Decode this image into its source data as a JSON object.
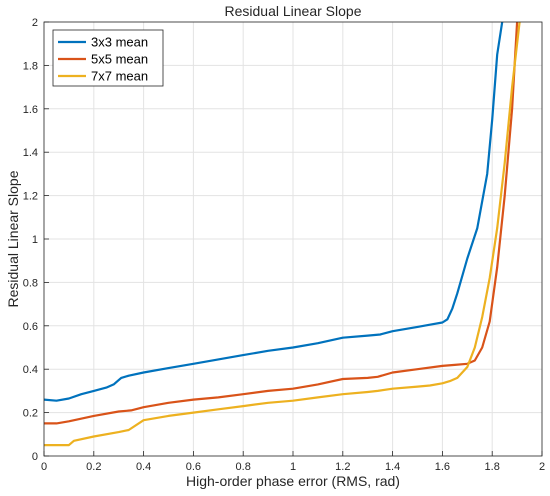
{
  "chart_data": {
    "type": "line",
    "title": "Residual Linear Slope",
    "xlabel": "High-order phase error (RMS, rad)",
    "ylabel": "Residual Linear Slope",
    "xlim": [
      0,
      2
    ],
    "ylim": [
      0,
      2
    ],
    "xticks": [
      "0",
      "0.2",
      "0.4",
      "0.6",
      "0.8",
      "1",
      "1.2",
      "1.4",
      "1.6",
      "1.8",
      "2"
    ],
    "yticks": [
      "0",
      "0.2",
      "0.4",
      "0.6",
      "0.8",
      "1",
      "1.2",
      "1.4",
      "1.6",
      "1.8",
      "2"
    ],
    "grid": true,
    "legend_position": "top-left",
    "series": [
      {
        "name": "3x3 mean",
        "color": "#0072BD",
        "x": [
          0,
          0.05,
          0.1,
          0.15,
          0.2,
          0.25,
          0.28,
          0.31,
          0.34,
          0.4,
          0.5,
          0.6,
          0.7,
          0.8,
          0.9,
          1.0,
          1.1,
          1.2,
          1.3,
          1.35,
          1.4,
          1.5,
          1.55,
          1.6,
          1.62,
          1.64,
          1.66,
          1.7,
          1.74,
          1.78,
          1.8,
          1.82,
          1.84
        ],
        "y": [
          0.26,
          0.255,
          0.265,
          0.285,
          0.3,
          0.315,
          0.33,
          0.36,
          0.37,
          0.385,
          0.405,
          0.425,
          0.445,
          0.465,
          0.485,
          0.5,
          0.52,
          0.545,
          0.555,
          0.56,
          0.575,
          0.595,
          0.605,
          0.615,
          0.63,
          0.68,
          0.75,
          0.91,
          1.05,
          1.3,
          1.55,
          1.85,
          2.0
        ]
      },
      {
        "name": "5x5 mean",
        "color": "#D95319",
        "x": [
          0,
          0.05,
          0.1,
          0.2,
          0.3,
          0.35,
          0.4,
          0.5,
          0.6,
          0.7,
          0.8,
          0.9,
          1.0,
          1.1,
          1.2,
          1.3,
          1.34,
          1.4,
          1.5,
          1.6,
          1.65,
          1.7,
          1.73,
          1.76,
          1.79,
          1.82,
          1.85,
          1.88,
          1.9
        ],
        "y": [
          0.15,
          0.15,
          0.16,
          0.185,
          0.205,
          0.21,
          0.225,
          0.245,
          0.26,
          0.27,
          0.285,
          0.3,
          0.31,
          0.33,
          0.355,
          0.36,
          0.365,
          0.385,
          0.4,
          0.415,
          0.42,
          0.425,
          0.44,
          0.5,
          0.62,
          0.87,
          1.2,
          1.6,
          2.0
        ]
      },
      {
        "name": "7x7 mean",
        "color": "#EDB120",
        "x": [
          0,
          0.05,
          0.1,
          0.12,
          0.2,
          0.3,
          0.34,
          0.4,
          0.5,
          0.6,
          0.7,
          0.8,
          0.9,
          1.0,
          1.1,
          1.2,
          1.3,
          1.34,
          1.4,
          1.5,
          1.55,
          1.6,
          1.63,
          1.66,
          1.7,
          1.73,
          1.76,
          1.79,
          1.82,
          1.85,
          1.88,
          1.91
        ],
        "y": [
          0.05,
          0.05,
          0.05,
          0.07,
          0.09,
          0.11,
          0.12,
          0.165,
          0.185,
          0.2,
          0.215,
          0.23,
          0.245,
          0.255,
          0.27,
          0.285,
          0.295,
          0.3,
          0.31,
          0.32,
          0.325,
          0.335,
          0.345,
          0.36,
          0.41,
          0.5,
          0.64,
          0.82,
          1.05,
          1.35,
          1.7,
          2.0
        ]
      }
    ]
  }
}
